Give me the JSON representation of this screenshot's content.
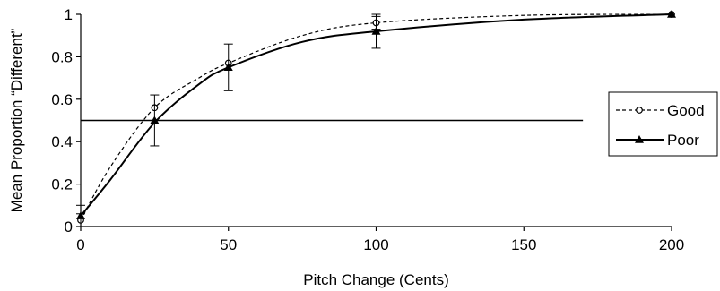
{
  "chart_data": {
    "type": "line",
    "title": "",
    "xlabel": "Pitch Change (Cents)",
    "ylabel": "Mean Proportion “Different”",
    "xlim": [
      0,
      200
    ],
    "ylim": [
      0,
      1
    ],
    "x_ticks": [
      "0",
      "50",
      "100",
      "150",
      "200"
    ],
    "y_ticks": [
      "0",
      "0.2",
      "0.4",
      "0.6",
      "0.8",
      "1"
    ],
    "reference_line": {
      "y": 0.5,
      "x_range": [
        0,
        170
      ]
    },
    "legend_position": "right",
    "series": [
      {
        "name": "Good",
        "style": "dashed",
        "marker": "open-circle",
        "points": [
          {
            "x": 0,
            "y": 0.03,
            "err": 0.03
          },
          {
            "x": 25,
            "y": 0.56,
            "err": 0.0
          },
          {
            "x": 50,
            "y": 0.77,
            "err": 0.0
          },
          {
            "x": 100,
            "y": 0.96,
            "err": 0.03
          },
          {
            "x": 200,
            "y": 1.0,
            "err": 0.0
          }
        ],
        "curve": [
          [
            0,
            0.03
          ],
          [
            10,
            0.28
          ],
          [
            25,
            0.56
          ],
          [
            40,
            0.7
          ],
          [
            50,
            0.77
          ],
          [
            75,
            0.9
          ],
          [
            100,
            0.96
          ],
          [
            150,
            0.995
          ],
          [
            200,
            1.0
          ]
        ]
      },
      {
        "name": "Poor",
        "style": "solid",
        "marker": "filled-triangle",
        "points": [
          {
            "x": 0,
            "y": 0.05,
            "err": 0.05
          },
          {
            "x": 25,
            "y": 0.5,
            "err": 0.12
          },
          {
            "x": 50,
            "y": 0.75,
            "err": 0.11
          },
          {
            "x": 100,
            "y": 0.92,
            "err": 0.08
          },
          {
            "x": 200,
            "y": 1.0,
            "err": 0.0
          }
        ],
        "curve": [
          [
            0,
            0.05
          ],
          [
            10,
            0.22
          ],
          [
            25,
            0.49
          ],
          [
            40,
            0.67
          ],
          [
            50,
            0.75
          ],
          [
            75,
            0.87
          ],
          [
            100,
            0.92
          ],
          [
            150,
            0.975
          ],
          [
            200,
            1.0
          ]
        ]
      }
    ]
  }
}
